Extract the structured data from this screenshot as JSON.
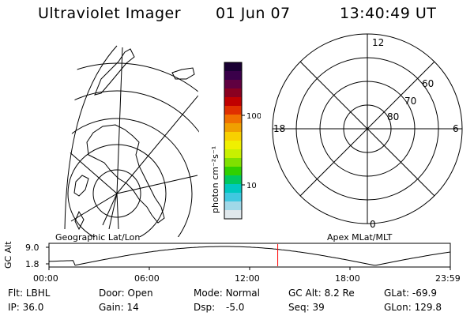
{
  "header": {
    "instrument": "Ultraviolet Imager",
    "date": "01 Jun 07",
    "time": "13:40:49 UT"
  },
  "geo_panel": {
    "label": "Geographic Lat/Lon"
  },
  "colorbar": {
    "unit_label": "photon cm⁻²s⁻¹",
    "ticks": [
      "100",
      "10"
    ],
    "colors": [
      "#1a0033",
      "#3a004a",
      "#600040",
      "#8a0020",
      "#c00000",
      "#e03000",
      "#f07000",
      "#f0a000",
      "#f8d000",
      "#f0f000",
      "#c8f000",
      "#80e000",
      "#30d000",
      "#00c860",
      "#00c8c0",
      "#40c8e0",
      "#a0d8e8",
      "#e0e8ec"
    ]
  },
  "polar_panel": {
    "label": "Apex MLat/MLT",
    "mlt_labels": {
      "top": "12",
      "bottom": "0",
      "left": "18",
      "right": "6"
    },
    "lat_labels": [
      "60",
      "70",
      "80"
    ]
  },
  "altitude_plot": {
    "axis_label": "GC Alt",
    "y_ticks": [
      "9.0",
      "1.8"
    ],
    "x_ticks": [
      "00:00",
      "06:00",
      "12:00",
      "18:00",
      "23:59"
    ],
    "marker_time_hours": 13.68,
    "curve_color": "#000000",
    "marker_color": "#ff0000"
  },
  "status": {
    "filter_label": "Flt:",
    "filter_value": "LBHL",
    "door_label": "Door:",
    "door_value": "Open",
    "mode_label": "Mode:",
    "mode_value": "Normal",
    "gcalt_label": "GC Alt:",
    "gcalt_value": "8.2 Re",
    "glat_label": "GLat:",
    "glat_value": "-69.9",
    "ip_label": "IP:",
    "ip_value": "36.0",
    "gain_label": "Gain:",
    "gain_value": "14",
    "dsp_label": "Dsp:",
    "dsp_value": "-5.0",
    "seq_label": "Seq:",
    "seq_value": "39",
    "glon_label": "GLon:",
    "glon_value": "129.8"
  }
}
